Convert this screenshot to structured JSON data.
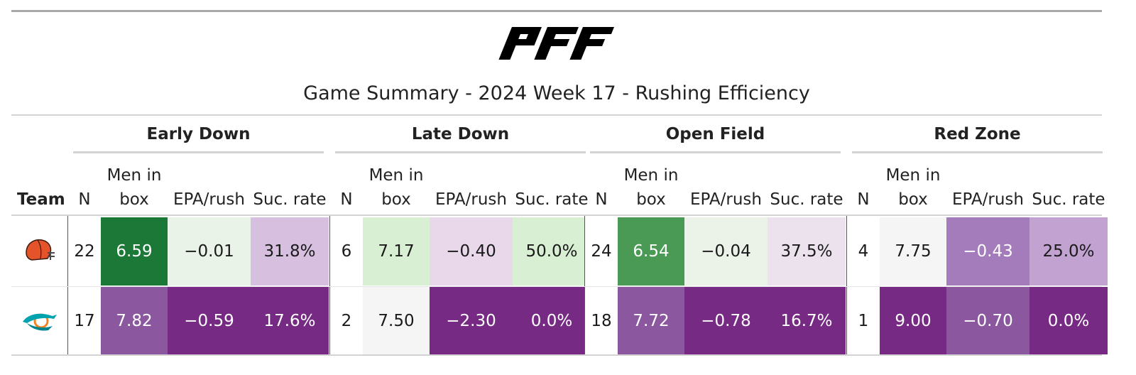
{
  "logo_text": "PFF",
  "title": "Game Summary - 2024 Week 17 - Rushing Efficiency",
  "team_header": "Team",
  "groups": [
    {
      "label": "Early Down"
    },
    {
      "label": "Late Down"
    },
    {
      "label": "Open Field"
    },
    {
      "label": "Red Zone"
    }
  ],
  "columns": [
    "N",
    "Men in box",
    "EPA/rush",
    "Suc. rate"
  ],
  "rows": [
    {
      "team_icon": "browns-helmet-icon",
      "cells": [
        {
          "v": "22",
          "bg": "#ffffff",
          "fg": "#1a1a1a"
        },
        {
          "v": "6.59",
          "bg": "#1b7837",
          "fg": "#ffffff"
        },
        {
          "v": "−0.01",
          "bg": "#e9f3e8",
          "fg": "#1a1a1a"
        },
        {
          "v": "31.8%",
          "bg": "#d7bfdf",
          "fg": "#1a1a1a"
        },
        {
          "v": "6",
          "bg": "#ffffff",
          "fg": "#1a1a1a"
        },
        {
          "v": "7.17",
          "bg": "#d9efd3",
          "fg": "#1a1a1a"
        },
        {
          "v": "−0.40",
          "bg": "#e8d8ea",
          "fg": "#1a1a1a"
        },
        {
          "v": "50.0%",
          "bg": "#d9efd3",
          "fg": "#1a1a1a"
        },
        {
          "v": "24",
          "bg": "#ffffff",
          "fg": "#1a1a1a"
        },
        {
          "v": "6.54",
          "bg": "#4a9a55",
          "fg": "#ffffff"
        },
        {
          "v": "−0.04",
          "bg": "#ebf3e9",
          "fg": "#1a1a1a"
        },
        {
          "v": "37.5%",
          "bg": "#ece2ee",
          "fg": "#1a1a1a"
        },
        {
          "v": "4",
          "bg": "#ffffff",
          "fg": "#1a1a1a"
        },
        {
          "v": "7.75",
          "bg": "#f5f5f5",
          "fg": "#1a1a1a"
        },
        {
          "v": "−0.43",
          "bg": "#a47bbb",
          "fg": "#ffffff"
        },
        {
          "v": "25.0%",
          "bg": "#c1a2d0",
          "fg": "#1a1a1a"
        }
      ]
    },
    {
      "team_icon": "dolphins-logo-icon",
      "cells": [
        {
          "v": "17",
          "bg": "#ffffff",
          "fg": "#1a1a1a"
        },
        {
          "v": "7.82",
          "bg": "#8b579e",
          "fg": "#ffffff"
        },
        {
          "v": "−0.59",
          "bg": "#762a83",
          "fg": "#ffffff"
        },
        {
          "v": "17.6%",
          "bg": "#762a83",
          "fg": "#ffffff"
        },
        {
          "v": "2",
          "bg": "#ffffff",
          "fg": "#1a1a1a"
        },
        {
          "v": "7.50",
          "bg": "#f5f5f5",
          "fg": "#1a1a1a"
        },
        {
          "v": "−2.30",
          "bg": "#762a83",
          "fg": "#ffffff"
        },
        {
          "v": "0.0%",
          "bg": "#762a83",
          "fg": "#ffffff"
        },
        {
          "v": "18",
          "bg": "#ffffff",
          "fg": "#1a1a1a"
        },
        {
          "v": "7.72",
          "bg": "#8b579e",
          "fg": "#ffffff"
        },
        {
          "v": "−0.78",
          "bg": "#762a83",
          "fg": "#ffffff"
        },
        {
          "v": "16.7%",
          "bg": "#762a83",
          "fg": "#ffffff"
        },
        {
          "v": "1",
          "bg": "#ffffff",
          "fg": "#1a1a1a"
        },
        {
          "v": "9.00",
          "bg": "#762a83",
          "fg": "#ffffff"
        },
        {
          "v": "−0.70",
          "bg": "#8b579e",
          "fg": "#ffffff"
        },
        {
          "v": "0.0%",
          "bg": "#762a83",
          "fg": "#ffffff"
        }
      ]
    }
  ]
}
